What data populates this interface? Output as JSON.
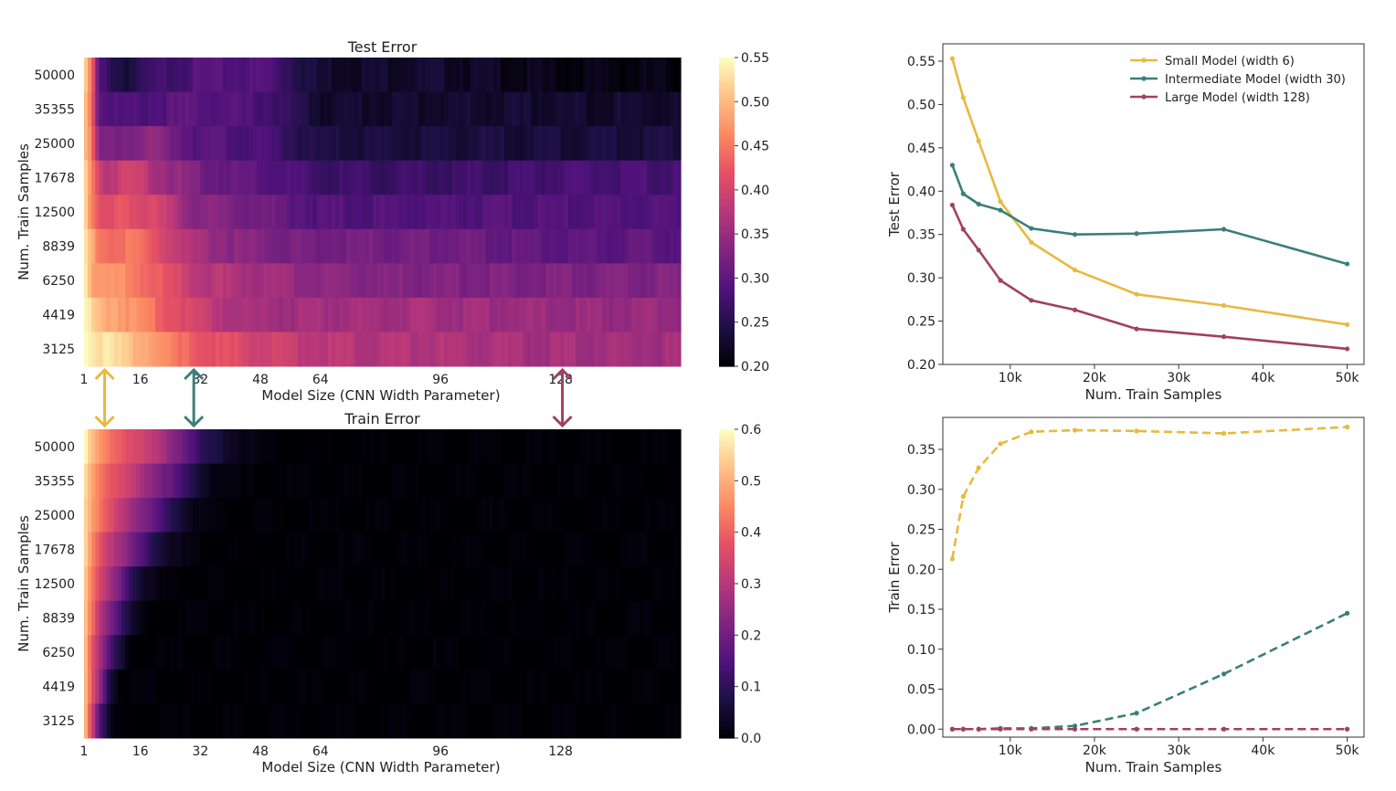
{
  "colors": {
    "small": "#e8b93e",
    "intermediate": "#3a7f7a",
    "large": "#a1405f"
  },
  "chart_data": [
    {
      "type": "heatmap",
      "title": "Test Error",
      "xlabel": "Model Size (CNN Width Parameter)",
      "ylabel": "Num. Train Samples",
      "x_ticks": [
        "1",
        "16",
        "32",
        "48",
        "64",
        "96",
        "128"
      ],
      "x_range": [
        1,
        128
      ],
      "rows": [
        "50000",
        "35355",
        "25000",
        "17678",
        "12500",
        "8839",
        "6250",
        "4419",
        "3125"
      ],
      "colorbar": {
        "min": 0.2,
        "max": 0.55,
        "ticks": [
          "0.55",
          "0.50",
          "0.45",
          "0.40",
          "0.35",
          "0.30",
          "0.25",
          "0.20"
        ],
        "colormap": "magma"
      },
      "profiles": [
        [
          [
            1,
            0.52
          ],
          [
            3,
            0.45
          ],
          [
            5,
            0.28
          ],
          [
            12,
            0.24
          ],
          [
            20,
            0.27
          ],
          [
            30,
            0.29
          ],
          [
            40,
            0.29
          ],
          [
            50,
            0.29
          ],
          [
            64,
            0.23
          ],
          [
            96,
            0.23
          ],
          [
            128,
            0.21
          ],
          [
            160,
            0.21
          ]
        ],
        [
          [
            1,
            0.52
          ],
          [
            3,
            0.45
          ],
          [
            5,
            0.3
          ],
          [
            12,
            0.28
          ],
          [
            20,
            0.29
          ],
          [
            30,
            0.3
          ],
          [
            40,
            0.29
          ],
          [
            50,
            0.28
          ],
          [
            64,
            0.23
          ],
          [
            96,
            0.23
          ],
          [
            128,
            0.23
          ],
          [
            160,
            0.23
          ]
        ],
        [
          [
            1,
            0.53
          ],
          [
            3,
            0.45
          ],
          [
            5,
            0.32
          ],
          [
            12,
            0.33
          ],
          [
            20,
            0.34
          ],
          [
            30,
            0.3
          ],
          [
            40,
            0.29
          ],
          [
            50,
            0.28
          ],
          [
            64,
            0.24
          ],
          [
            96,
            0.24
          ],
          [
            128,
            0.24
          ],
          [
            160,
            0.24
          ]
        ],
        [
          [
            1,
            0.53
          ],
          [
            3,
            0.46
          ],
          [
            6,
            0.38
          ],
          [
            14,
            0.4
          ],
          [
            22,
            0.36
          ],
          [
            32,
            0.32
          ],
          [
            48,
            0.3
          ],
          [
            64,
            0.27
          ],
          [
            96,
            0.27
          ],
          [
            128,
            0.28
          ],
          [
            160,
            0.28
          ]
        ],
        [
          [
            1,
            0.54
          ],
          [
            3,
            0.46
          ],
          [
            6,
            0.4
          ],
          [
            12,
            0.43
          ],
          [
            20,
            0.4
          ],
          [
            30,
            0.34
          ],
          [
            48,
            0.32
          ],
          [
            64,
            0.29
          ],
          [
            96,
            0.29
          ],
          [
            128,
            0.29
          ],
          [
            160,
            0.29
          ]
        ],
        [
          [
            1,
            0.54
          ],
          [
            4,
            0.47
          ],
          [
            8,
            0.44
          ],
          [
            14,
            0.45
          ],
          [
            20,
            0.42
          ],
          [
            30,
            0.36
          ],
          [
            48,
            0.33
          ],
          [
            64,
            0.32
          ],
          [
            96,
            0.32
          ],
          [
            128,
            0.3
          ],
          [
            160,
            0.3
          ]
        ],
        [
          [
            1,
            0.55
          ],
          [
            4,
            0.48
          ],
          [
            8,
            0.47
          ],
          [
            14,
            0.46
          ],
          [
            22,
            0.42
          ],
          [
            32,
            0.38
          ],
          [
            48,
            0.36
          ],
          [
            64,
            0.34
          ],
          [
            96,
            0.33
          ],
          [
            128,
            0.33
          ],
          [
            160,
            0.33
          ]
        ],
        [
          [
            1,
            0.55
          ],
          [
            4,
            0.5
          ],
          [
            10,
            0.49
          ],
          [
            18,
            0.45
          ],
          [
            26,
            0.42
          ],
          [
            36,
            0.38
          ],
          [
            48,
            0.36
          ],
          [
            64,
            0.36
          ],
          [
            96,
            0.36
          ],
          [
            128,
            0.35
          ],
          [
            160,
            0.35
          ]
        ],
        [
          [
            1,
            0.56
          ],
          [
            4,
            0.54
          ],
          [
            10,
            0.52
          ],
          [
            18,
            0.49
          ],
          [
            26,
            0.44
          ],
          [
            36,
            0.42
          ],
          [
            48,
            0.4
          ],
          [
            64,
            0.38
          ],
          [
            96,
            0.37
          ],
          [
            128,
            0.36
          ],
          [
            160,
            0.36
          ]
        ]
      ]
    },
    {
      "type": "heatmap",
      "title": "Train Error",
      "xlabel": "Model Size (CNN Width Parameter)",
      "ylabel": "Num. Train Samples",
      "x_ticks": [
        "1",
        "16",
        "32",
        "48",
        "64",
        "96",
        "128"
      ],
      "x_range": [
        1,
        128
      ],
      "rows": [
        "50000",
        "35355",
        "25000",
        "17678",
        "12500",
        "8839",
        "6250",
        "4419",
        "3125"
      ],
      "colorbar": {
        "min": 0.0,
        "max": 0.6,
        "ticks": [
          "0.6",
          "0.5",
          "0.4",
          "0.3",
          "0.2",
          "0.1",
          "0.0"
        ],
        "colormap": "magma"
      },
      "profiles": [
        [
          [
            1,
            0.6
          ],
          [
            3,
            0.52
          ],
          [
            6,
            0.45
          ],
          [
            12,
            0.38
          ],
          [
            20,
            0.3
          ],
          [
            28,
            0.2
          ],
          [
            32,
            0.1
          ],
          [
            40,
            0.04
          ],
          [
            48,
            0.01
          ],
          [
            56,
            0.0
          ],
          [
            160,
            0.0
          ]
        ],
        [
          [
            1,
            0.58
          ],
          [
            3,
            0.5
          ],
          [
            6,
            0.42
          ],
          [
            12,
            0.34
          ],
          [
            18,
            0.26
          ],
          [
            24,
            0.18
          ],
          [
            30,
            0.08
          ],
          [
            36,
            0.02
          ],
          [
            42,
            0.0
          ],
          [
            160,
            0.0
          ]
        ],
        [
          [
            1,
            0.58
          ],
          [
            3,
            0.48
          ],
          [
            6,
            0.4
          ],
          [
            12,
            0.3
          ],
          [
            18,
            0.2
          ],
          [
            24,
            0.1
          ],
          [
            30,
            0.03
          ],
          [
            36,
            0.0
          ],
          [
            160,
            0.0
          ]
        ],
        [
          [
            1,
            0.57
          ],
          [
            3,
            0.46
          ],
          [
            6,
            0.36
          ],
          [
            10,
            0.28
          ],
          [
            16,
            0.16
          ],
          [
            22,
            0.06
          ],
          [
            28,
            0.01
          ],
          [
            32,
            0.0
          ],
          [
            160,
            0.0
          ]
        ],
        [
          [
            1,
            0.56
          ],
          [
            3,
            0.44
          ],
          [
            6,
            0.32
          ],
          [
            10,
            0.22
          ],
          [
            14,
            0.1
          ],
          [
            18,
            0.03
          ],
          [
            22,
            0.0
          ],
          [
            160,
            0.0
          ]
        ],
        [
          [
            1,
            0.55
          ],
          [
            3,
            0.42
          ],
          [
            6,
            0.28
          ],
          [
            10,
            0.16
          ],
          [
            13,
            0.06
          ],
          [
            16,
            0.01
          ],
          [
            18,
            0.0
          ],
          [
            160,
            0.0
          ]
        ],
        [
          [
            1,
            0.55
          ],
          [
            3,
            0.4
          ],
          [
            6,
            0.24
          ],
          [
            9,
            0.1
          ],
          [
            12,
            0.03
          ],
          [
            14,
            0.0
          ],
          [
            160,
            0.0
          ]
        ],
        [
          [
            1,
            0.55
          ],
          [
            3,
            0.38
          ],
          [
            6,
            0.2
          ],
          [
            8,
            0.07
          ],
          [
            10,
            0.02
          ],
          [
            12,
            0.0
          ],
          [
            160,
            0.0
          ]
        ],
        [
          [
            1,
            0.55
          ],
          [
            3,
            0.36
          ],
          [
            5,
            0.18
          ],
          [
            7,
            0.06
          ],
          [
            8,
            0.02
          ],
          [
            10,
            0.0
          ],
          [
            160,
            0.0
          ]
        ]
      ]
    },
    {
      "type": "line",
      "xlabel": "Num. Train Samples",
      "ylabel": "Test Error",
      "x_ticks": [
        "10k",
        "20k",
        "30k",
        "40k",
        "50k"
      ],
      "x_tick_values": [
        10000,
        20000,
        30000,
        40000,
        50000
      ],
      "xlim": [
        2000,
        52000
      ],
      "y_ticks": [
        "0.20",
        "0.25",
        "0.30",
        "0.35",
        "0.40",
        "0.45",
        "0.50",
        "0.55"
      ],
      "ylim": [
        0.2,
        0.57
      ],
      "legend": "top-right",
      "x": [
        3125,
        4419,
        6250,
        8839,
        12500,
        17678,
        25000,
        35355,
        50000
      ],
      "series": [
        {
          "name": "Small Model (width 6)",
          "color_key": "small",
          "dashed": false,
          "values": [
            0.553,
            0.508,
            0.458,
            0.388,
            0.341,
            0.309,
            0.281,
            0.268,
            0.246
          ]
        },
        {
          "name": "Intermediate Model (width 30)",
          "color_key": "intermediate",
          "dashed": false,
          "values": [
            0.43,
            0.397,
            0.385,
            0.378,
            0.357,
            0.35,
            0.351,
            0.356,
            0.316
          ]
        },
        {
          "name": "Large Model (width 128)",
          "color_key": "large",
          "dashed": false,
          "values": [
            0.384,
            0.356,
            0.332,
            0.297,
            0.274,
            0.263,
            0.241,
            0.232,
            0.218
          ]
        }
      ]
    },
    {
      "type": "line",
      "xlabel": "Num. Train Samples",
      "ylabel": "Train Error",
      "x_ticks": [
        "10k",
        "20k",
        "30k",
        "40k",
        "50k"
      ],
      "x_tick_values": [
        10000,
        20000,
        30000,
        40000,
        50000
      ],
      "xlim": [
        2000,
        52000
      ],
      "y_ticks": [
        "0.00",
        "0.05",
        "0.10",
        "0.15",
        "0.20",
        "0.25",
        "0.30",
        "0.35"
      ],
      "ylim": [
        -0.01,
        0.39
      ],
      "x": [
        3125,
        4419,
        6250,
        8839,
        12500,
        17678,
        25000,
        35355,
        50000
      ],
      "series": [
        {
          "name": "",
          "color_key": "small",
          "dashed": true,
          "values": [
            0.213,
            0.291,
            0.327,
            0.357,
            0.372,
            0.374,
            0.373,
            0.37,
            0.378
          ]
        },
        {
          "name": "",
          "color_key": "intermediate",
          "dashed": true,
          "values": [
            0.0,
            0.0,
            0.0,
            0.001,
            0.001,
            0.004,
            0.02,
            0.069,
            0.145
          ]
        },
        {
          "name": "",
          "color_key": "large",
          "dashed": true,
          "values": [
            0.0,
            0.0,
            0.0,
            0.0,
            0.0,
            0.0,
            0.0,
            0.0,
            0.0
          ]
        }
      ]
    }
  ],
  "connectors": [
    {
      "color_key": "small",
      "width": 6
    },
    {
      "color_key": "intermediate",
      "width": 30
    },
    {
      "color_key": "large",
      "width": 128
    }
  ]
}
